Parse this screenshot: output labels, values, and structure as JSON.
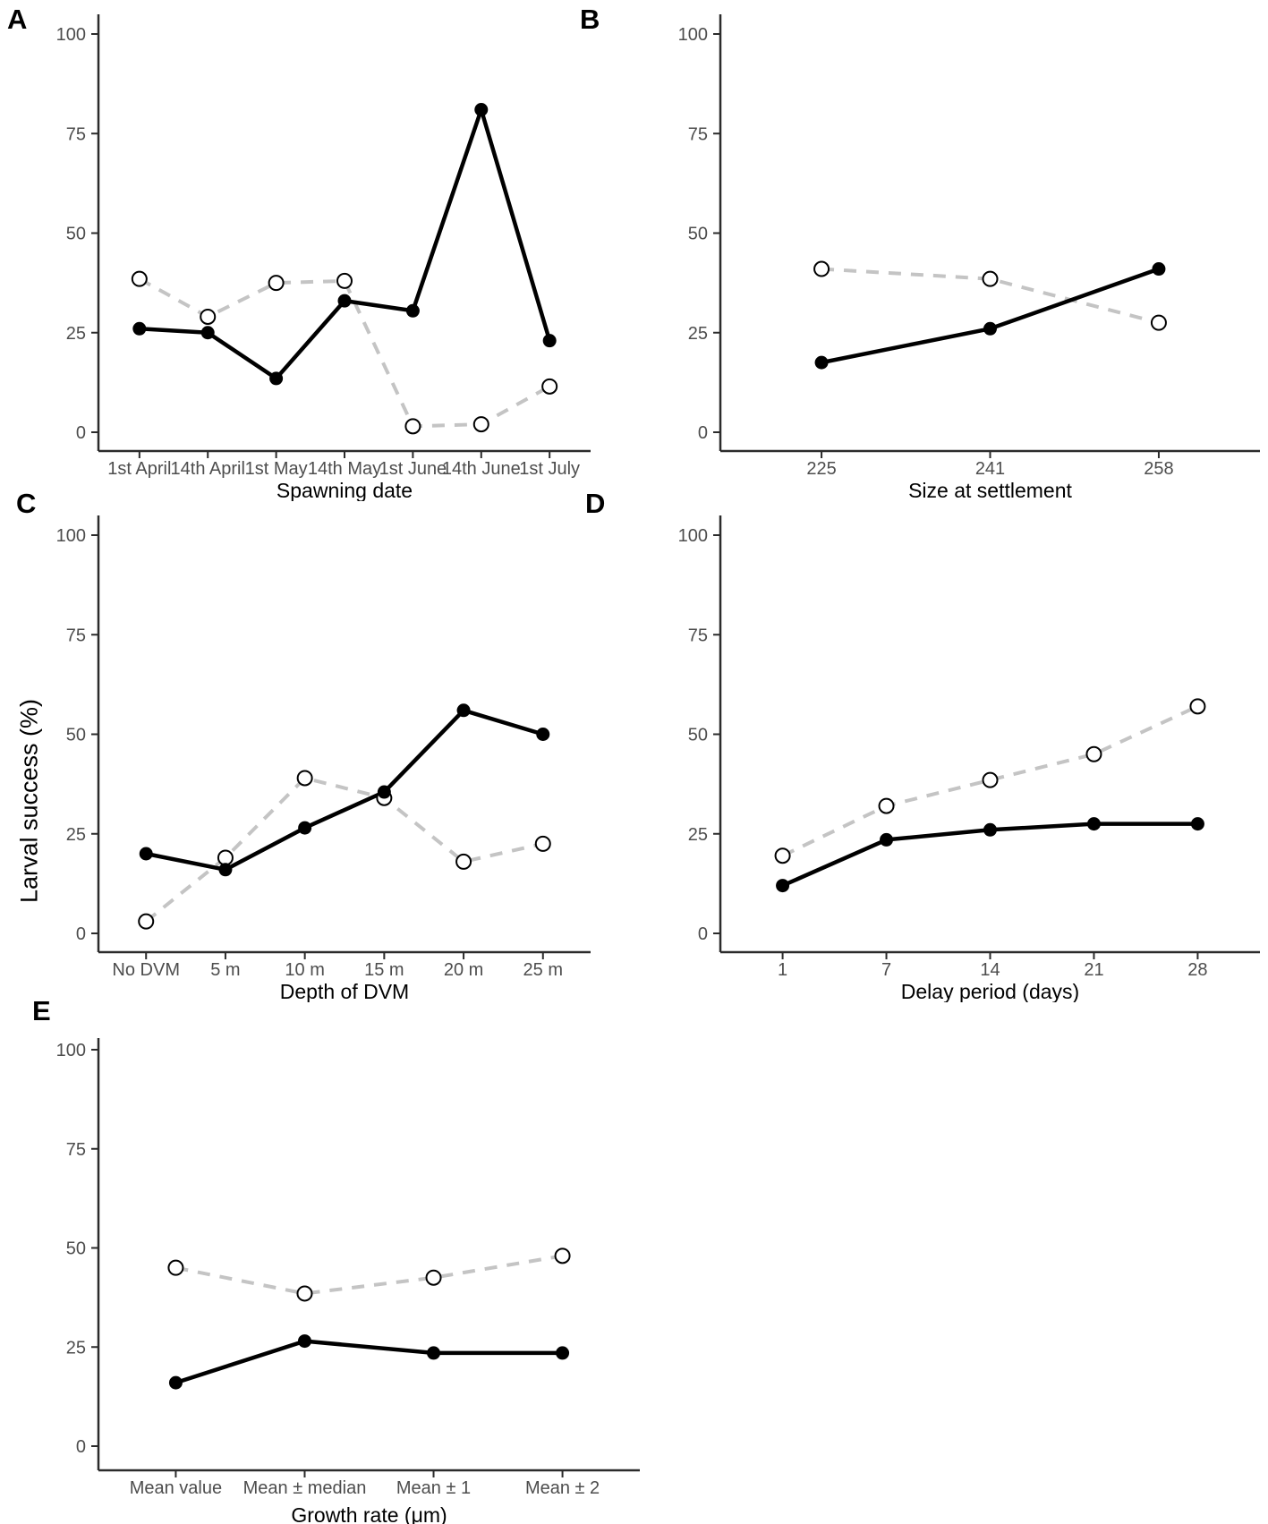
{
  "figure": {
    "y_axis_label": "Larval success (%)",
    "y_ticks": [
      0,
      25,
      50,
      75,
      100
    ],
    "y_limits": [
      0,
      100
    ],
    "legend": "none",
    "grid": false,
    "colors": {
      "background": "#ffffff",
      "solid_series": "#000000",
      "dashed_series": "#c4c4c4",
      "open_marker_fill": "#ffffff",
      "open_marker_stroke": "#000000",
      "axis_line": "#2b2b2b",
      "tick_label": "#4d4d4d",
      "axis_title": "#000000"
    }
  },
  "chart_data": [
    {
      "panel": "A",
      "type": "line",
      "xlabel": "Spawning date",
      "ylabel": "Larval success (%)",
      "ylim": [
        0,
        100
      ],
      "categories": [
        "1st April",
        "14th April",
        "1st May",
        "14th May",
        "1st June",
        "14th June",
        "1st July"
      ],
      "series": [
        {
          "name": "solid_filled",
          "line": "solid",
          "marker": "filled-circle",
          "color": "#000000",
          "values": [
            26,
            25,
            13.5,
            33,
            30.5,
            81,
            23
          ]
        },
        {
          "name": "dashed_open",
          "line": "dashed",
          "marker": "open-circle",
          "color": "#c4c4c4",
          "values": [
            38.5,
            29,
            37.5,
            38,
            1.5,
            2,
            11.5
          ]
        }
      ]
    },
    {
      "panel": "B",
      "type": "line",
      "xlabel": "Size at settlement",
      "ylabel": "Larval success (%)",
      "ylim": [
        0,
        100
      ],
      "categories": [
        "225",
        "241",
        "258"
      ],
      "series": [
        {
          "name": "solid_filled",
          "line": "solid",
          "marker": "filled-circle",
          "color": "#000000",
          "values": [
            17.5,
            26,
            41
          ]
        },
        {
          "name": "dashed_open",
          "line": "dashed",
          "marker": "open-circle",
          "color": "#c4c4c4",
          "values": [
            41,
            38.5,
            27.5
          ]
        }
      ]
    },
    {
      "panel": "C",
      "type": "line",
      "xlabel": "Depth of DVM",
      "ylabel": "Larval success (%)",
      "ylim": [
        0,
        100
      ],
      "categories": [
        "No DVM",
        "5 m",
        "10 m",
        "15 m",
        "20 m",
        "25 m"
      ],
      "series": [
        {
          "name": "solid_filled",
          "line": "solid",
          "marker": "filled-circle",
          "color": "#000000",
          "values": [
            20,
            16,
            26.5,
            35.5,
            56,
            50
          ]
        },
        {
          "name": "dashed_open",
          "line": "dashed",
          "marker": "open-circle",
          "color": "#c4c4c4",
          "values": [
            3,
            19,
            39,
            34,
            18,
            22.5
          ]
        }
      ]
    },
    {
      "panel": "D",
      "type": "line",
      "xlabel": "Delay period (days)",
      "ylabel": "Larval success (%)",
      "ylim": [
        0,
        100
      ],
      "categories": [
        "1",
        "7",
        "14",
        "21",
        "28"
      ],
      "series": [
        {
          "name": "solid_filled",
          "line": "solid",
          "marker": "filled-circle",
          "color": "#000000",
          "values": [
            12,
            23.5,
            26,
            27.5,
            27.5
          ]
        },
        {
          "name": "dashed_open",
          "line": "dashed",
          "marker": "open-circle",
          "color": "#c4c4c4",
          "values": [
            19.5,
            32,
            38.5,
            45,
            57
          ]
        }
      ]
    },
    {
      "panel": "E",
      "type": "line",
      "xlabel": "Growth rate (μm)",
      "ylabel": "Larval success (%)",
      "ylim": [
        0,
        100
      ],
      "categories": [
        "Mean value",
        "Mean ± median",
        "Mean ± 1",
        "Mean ± 2"
      ],
      "series": [
        {
          "name": "solid_filled",
          "line": "solid",
          "marker": "filled-circle",
          "color": "#000000",
          "values": [
            16,
            26.5,
            23.5,
            23.5
          ]
        },
        {
          "name": "dashed_open",
          "line": "dashed",
          "marker": "open-circle",
          "color": "#c4c4c4",
          "values": [
            45,
            38.5,
            42.5,
            48
          ]
        }
      ]
    }
  ]
}
